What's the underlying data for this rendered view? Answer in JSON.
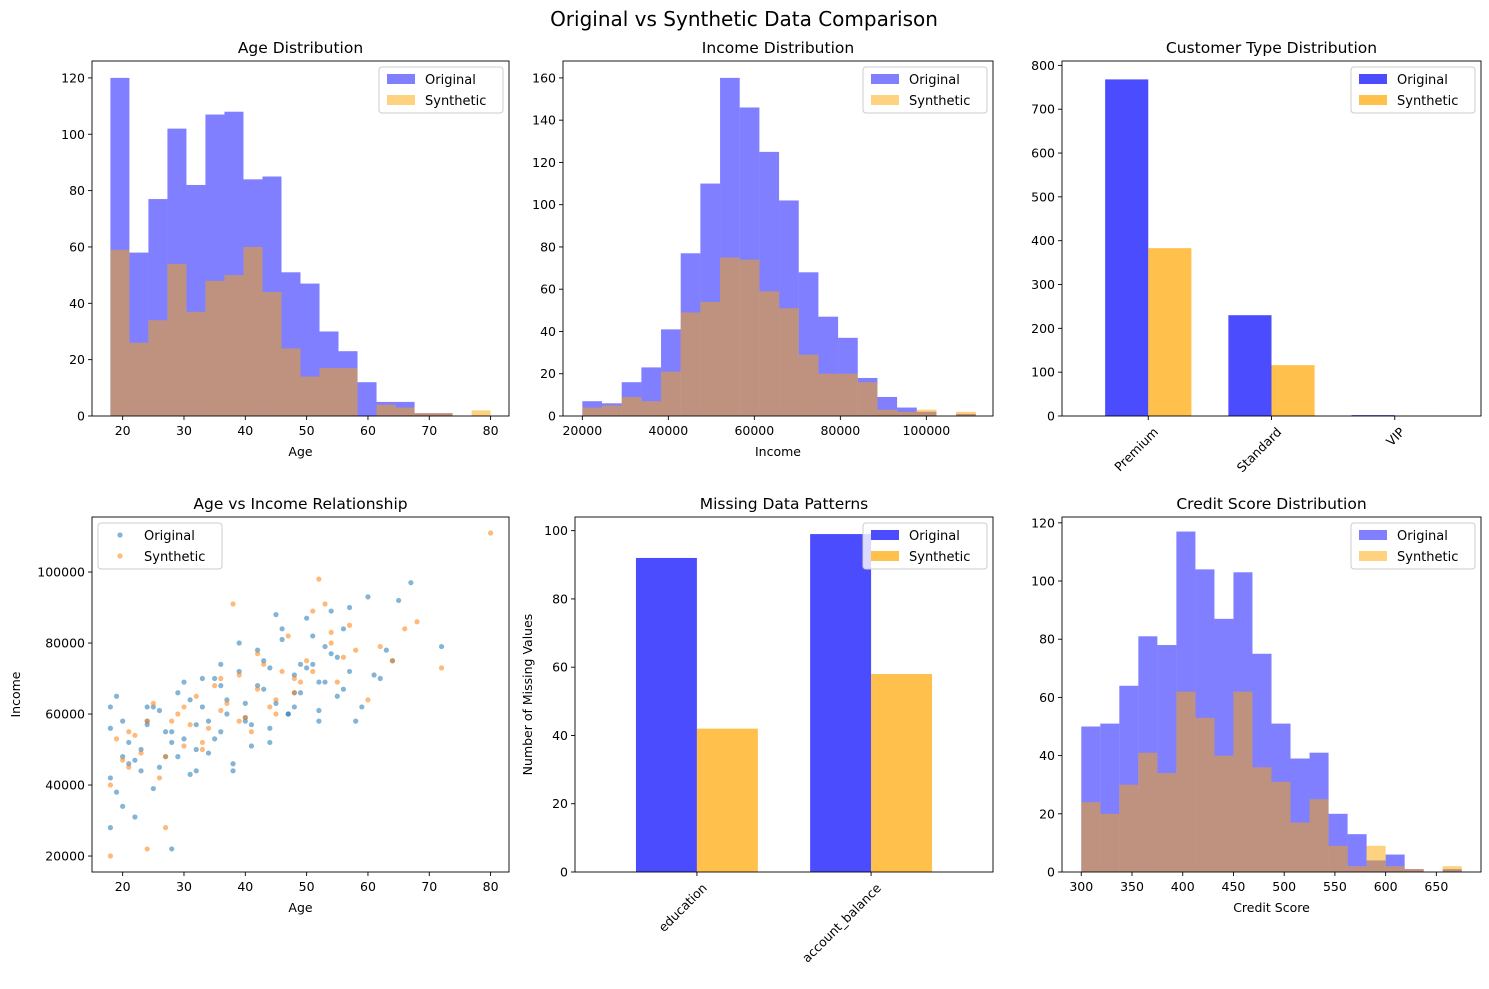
{
  "figure": {
    "suptitle": "Original vs Synthetic Data Comparison"
  },
  "colors": {
    "hist_original": "#0000ff",
    "hist_synthetic": "#ffa500",
    "scatter_original": "#1f77b4",
    "scatter_synthetic": "#ff7f0e"
  },
  "chart_data": [
    {
      "id": "age",
      "type": "bar",
      "title": "Age Distribution",
      "xlabel": "Age",
      "ylabel": "",
      "xlim": [
        15,
        83
      ],
      "ylim": [
        0,
        126
      ],
      "xticks": [
        20,
        30,
        40,
        50,
        60,
        70,
        80
      ],
      "yticks": [
        0,
        20,
        40,
        60,
        80,
        100,
        120
      ],
      "legend": "top-right",
      "series": [
        {
          "name": "Original",
          "x": [
            18,
            21.1,
            24.2,
            27.3,
            30.4,
            33.5,
            36.6,
            39.7,
            42.8,
            45.9,
            49.0,
            52.1,
            55.2,
            58.3,
            61.4,
            64.5,
            67.6,
            70.7,
            73.8,
            76.9
          ],
          "width": 3.1,
          "values": [
            120,
            58,
            77,
            102,
            82,
            107,
            108,
            84,
            85,
            51,
            47,
            30,
            23,
            12,
            5,
            5,
            1,
            1,
            0,
            0
          ]
        },
        {
          "name": "Synthetic",
          "x": [
            18,
            21.1,
            24.2,
            27.3,
            30.4,
            33.5,
            36.6,
            39.7,
            42.8,
            45.9,
            49.0,
            52.1,
            55.2,
            58.3,
            61.4,
            64.5,
            67.6,
            70.7,
            73.8,
            76.9
          ],
          "width": 3.1,
          "values": [
            59,
            26,
            34,
            54,
            37,
            48,
            50,
            60,
            44,
            24,
            14,
            17,
            17,
            0,
            4,
            3,
            1,
            1,
            0,
            2
          ]
        }
      ]
    },
    {
      "id": "income",
      "type": "bar",
      "title": "Income Distribution",
      "xlabel": "Income",
      "ylabel": "",
      "xlim": [
        15500,
        115500
      ],
      "ylim": [
        0,
        168
      ],
      "xticks": [
        20000,
        40000,
        60000,
        80000,
        100000
      ],
      "yticks": [
        0,
        20,
        40,
        60,
        80,
        100,
        120,
        140,
        160
      ],
      "legend": "top-right",
      "series": [
        {
          "name": "Original",
          "x": [
            20000,
            24575,
            29150,
            33725,
            38300,
            42875,
            47450,
            52025,
            56600,
            61175,
            65750,
            70325,
            74900,
            79475,
            84050,
            88625,
            93200,
            97775,
            102350,
            106925
          ],
          "width": 4575,
          "values": [
            7,
            6,
            16,
            23,
            41,
            77,
            110,
            160,
            146,
            125,
            102,
            68,
            47,
            37,
            18,
            9,
            4,
            2,
            0,
            1
          ]
        },
        {
          "name": "Synthetic",
          "x": [
            20000,
            24575,
            29150,
            33725,
            38300,
            42875,
            47450,
            52025,
            56600,
            61175,
            65750,
            70325,
            74900,
            79475,
            84050,
            88625,
            93200,
            97775,
            102350,
            106925
          ],
          "width": 4575,
          "values": [
            4,
            5,
            9,
            7,
            21,
            49,
            54,
            75,
            74,
            59,
            51,
            29,
            20,
            20,
            16,
            3,
            2,
            3,
            0,
            2
          ]
        }
      ]
    },
    {
      "id": "customer",
      "type": "bar",
      "title": "Customer Type Distribution",
      "xlabel": "",
      "ylabel": "",
      "categories": [
        "Premium",
        "Standard",
        "VIP"
      ],
      "ylim": [
        0,
        810
      ],
      "yticks": [
        0,
        100,
        200,
        300,
        400,
        500,
        600,
        700,
        800
      ],
      "legend": "top-right",
      "series": [
        {
          "name": "Original",
          "values": [
            768,
            230,
            2
          ]
        },
        {
          "name": "Synthetic",
          "values": [
            383,
            116,
            1
          ]
        }
      ]
    },
    {
      "id": "scatter",
      "type": "scatter",
      "title": "Age vs Income Relationship",
      "xlabel": "Age",
      "ylabel": "Income",
      "xlim": [
        15,
        83
      ],
      "ylim": [
        15500,
        115500
      ],
      "xticks": [
        20,
        30,
        40,
        50,
        60,
        70,
        80
      ],
      "yticks": [
        20000,
        40000,
        60000,
        80000,
        100000
      ],
      "legend": "top-left",
      "series": [
        {
          "name": "Original",
          "x": [
            18,
            19,
            20,
            21,
            22,
            23,
            24,
            25,
            26,
            27,
            28,
            29,
            30,
            31,
            32,
            33,
            34,
            35,
            36,
            37,
            38,
            39,
            40,
            41,
            42,
            43,
            44,
            45,
            46,
            47,
            48,
            49,
            50,
            51,
            52,
            53,
            54,
            55,
            56,
            57,
            58,
            60,
            61,
            63,
            65,
            67,
            72,
            18,
            20,
            22,
            24,
            26,
            28,
            30,
            32,
            34,
            36,
            38,
            40,
            42,
            44,
            46,
            48,
            50,
            52,
            54,
            56,
            18,
            19,
            21,
            23,
            25,
            27,
            29,
            31,
            33,
            35,
            37,
            39,
            41,
            43,
            45,
            47,
            49,
            51,
            53,
            55,
            57,
            59,
            62,
            64,
            18,
            20,
            24,
            28,
            32,
            36,
            40,
            44,
            48,
            52
          ],
          "y": [
            42000,
            65000,
            34000,
            52000,
            47000,
            44000,
            58000,
            39000,
            61000,
            48000,
            22000,
            66000,
            53000,
            43000,
            57000,
            62000,
            49000,
            70000,
            55000,
            64000,
            46000,
            72000,
            59000,
            51000,
            68000,
            75000,
            56000,
            63000,
            81000,
            60000,
            71000,
            66000,
            87000,
            74000,
            69000,
            79000,
            77000,
            65000,
            84000,
            72000,
            58000,
            93000,
            71000,
            78000,
            92000,
            97000,
            79000,
            28000,
            58000,
            31000,
            62000,
            45000,
            55000,
            69000,
            50000,
            58000,
            74000,
            44000,
            63000,
            78000,
            52000,
            84000,
            62000,
            73000,
            58000,
            89000,
            67000,
            56000,
            38000,
            46000,
            50000,
            62000,
            55000,
            48000,
            64000,
            70000,
            53000,
            60000,
            80000,
            57000,
            67000,
            88000,
            60000,
            74000,
            82000,
            69000,
            76000,
            90000,
            62000,
            70000,
            75000,
            62000,
            48000,
            57000,
            52000,
            44000,
            68000,
            58000,
            73000,
            66000,
            61000
          ]
        },
        {
          "name": "Synthetic",
          "x": [
            18,
            20,
            22,
            24,
            26,
            28,
            30,
            32,
            34,
            36,
            38,
            40,
            42,
            44,
            46,
            48,
            50,
            52,
            54,
            56,
            58,
            60,
            62,
            64,
            66,
            68,
            72,
            80,
            19,
            21,
            23,
            25,
            27,
            29,
            31,
            33,
            35,
            37,
            39,
            41,
            43,
            45,
            47,
            49,
            51,
            53,
            55,
            57,
            18,
            21,
            24,
            27,
            30,
            33,
            36,
            39,
            42,
            45,
            48,
            51,
            54
          ],
          "y": [
            20000,
            47000,
            54000,
            22000,
            42000,
            58000,
            51000,
            65000,
            56000,
            61000,
            91000,
            59000,
            67000,
            62000,
            72000,
            70000,
            75000,
            98000,
            80000,
            76000,
            78000,
            64000,
            79000,
            75000,
            84000,
            86000,
            73000,
            111000,
            53000,
            45000,
            49000,
            63000,
            28000,
            60000,
            57000,
            52000,
            68000,
            63000,
            71000,
            55000,
            74000,
            64000,
            82000,
            69000,
            89000,
            91000,
            69000,
            85000,
            40000,
            55000,
            58000,
            48000,
            62000,
            50000,
            70000,
            58000,
            77000,
            60000,
            66000,
            72000,
            83000
          ]
        }
      ]
    },
    {
      "id": "missing",
      "type": "bar",
      "title": "Missing Data Patterns",
      "xlabel": "",
      "ylabel": "Number of Missing Values",
      "categories": [
        "education",
        "account_balance"
      ],
      "ylim": [
        0,
        104
      ],
      "yticks": [
        0,
        20,
        40,
        60,
        80,
        100
      ],
      "legend": "top-right",
      "series": [
        {
          "name": "Original",
          "values": [
            92,
            99
          ]
        },
        {
          "name": "Synthetic",
          "values": [
            42,
            58
          ]
        }
      ]
    },
    {
      "id": "credit",
      "type": "bar",
      "title": "Credit Score Distribution",
      "xlabel": "Credit Score",
      "ylabel": "",
      "xlim": [
        281,
        694
      ],
      "ylim": [
        0,
        122
      ],
      "xticks": [
        300,
        350,
        400,
        450,
        500,
        550,
        600,
        650
      ],
      "yticks": [
        0,
        20,
        40,
        60,
        80,
        100,
        120
      ],
      "legend": "top-right",
      "series": [
        {
          "name": "Original",
          "x": [
            300,
            318.75,
            337.5,
            356.25,
            375,
            393.75,
            412.5,
            431.25,
            450,
            468.75,
            487.5,
            506.25,
            525,
            543.75,
            562.5,
            581.25,
            600,
            618.75,
            637.5,
            656.25
          ],
          "width": 18.75,
          "values": [
            50,
            51,
            64,
            81,
            78,
            117,
            104,
            87,
            103,
            75,
            51,
            39,
            41,
            20,
            13,
            4,
            6,
            1,
            0,
            1
          ]
        },
        {
          "name": "Synthetic",
          "x": [
            300,
            318.75,
            337.5,
            356.25,
            375,
            393.75,
            412.5,
            431.25,
            450,
            468.75,
            487.5,
            506.25,
            525,
            543.75,
            562.5,
            581.25,
            600,
            618.75,
            637.5,
            656.25
          ],
          "width": 18.75,
          "values": [
            24,
            20,
            30,
            41,
            34,
            62,
            53,
            40,
            62,
            36,
            31,
            17,
            25,
            9,
            2,
            9,
            2,
            1,
            0,
            2
          ]
        }
      ]
    }
  ]
}
